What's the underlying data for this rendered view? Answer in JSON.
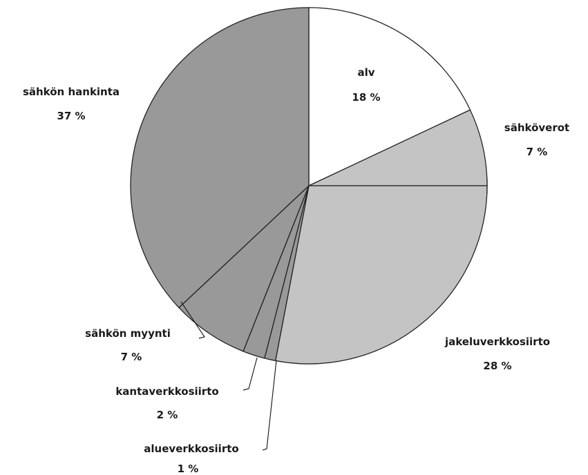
{
  "chart_data": {
    "type": "pie",
    "start_angle_deg": 0,
    "direction": "clockwise",
    "slices": [
      {
        "name": "alv",
        "value_label": "18 %",
        "value": 18,
        "color": "#ffffff"
      },
      {
        "name": "sähköverot",
        "value_label": "7 %",
        "value": 7,
        "color": "#c4c4c4"
      },
      {
        "name": "jakeluverkkosiirto",
        "value_label": "28 %",
        "value": 28,
        "color": "#c4c4c4"
      },
      {
        "name": "alueverkkosiirto",
        "value_label": "1 %",
        "value": 1,
        "color": "#999999"
      },
      {
        "name": "kantaverkkosiirto",
        "value_label": "2 %",
        "value": 2,
        "color": "#999999"
      },
      {
        "name": "sähkön myynti",
        "value_label": "7 %",
        "value": 7,
        "color": "#999999"
      },
      {
        "name": "sähkön hankinta",
        "value_label": "37 %",
        "value": 37,
        "color": "#999999"
      }
    ],
    "legend": "none"
  }
}
